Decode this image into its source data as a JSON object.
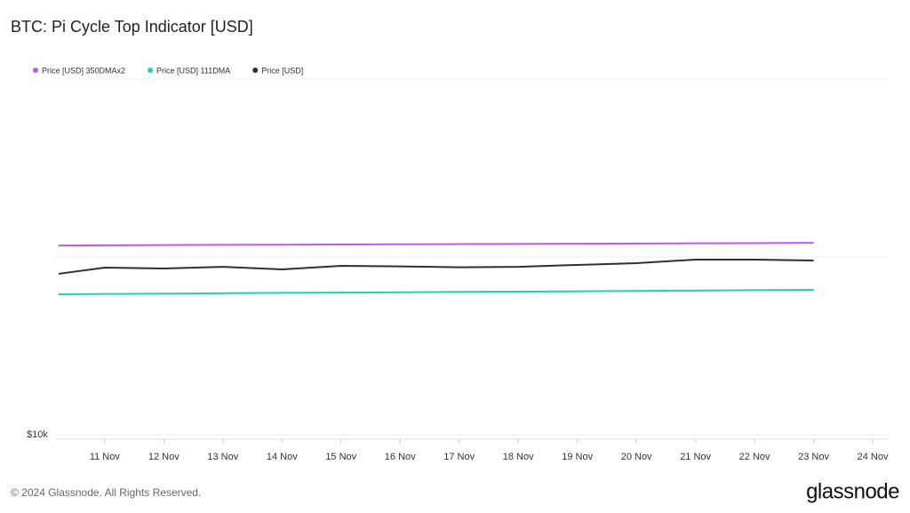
{
  "chart_data": {
    "type": "line",
    "title": "BTC: Pi Cycle Top Indicator [USD]",
    "x": [
      10.22,
      11,
      12,
      13,
      14,
      15,
      16,
      17,
      18,
      19,
      20,
      21,
      22,
      23
    ],
    "xlim": [
      10.16,
      24.27
    ],
    "xticks": [
      {
        "value": 11,
        "label": "11 Nov"
      },
      {
        "value": 12,
        "label": "12 Nov"
      },
      {
        "value": 13,
        "label": "13 Nov"
      },
      {
        "value": 14,
        "label": "14 Nov"
      },
      {
        "value": 15,
        "label": "15 Nov"
      },
      {
        "value": 16,
        "label": "16 Nov"
      },
      {
        "value": 17,
        "label": "17 Nov"
      },
      {
        "value": 18,
        "label": "18 Nov"
      },
      {
        "value": 19,
        "label": "19 Nov"
      },
      {
        "value": 20,
        "label": "20 Nov"
      },
      {
        "value": 21,
        "label": "21 Nov"
      },
      {
        "value": 22,
        "label": "22 Nov"
      },
      {
        "value": 23,
        "label": "23 Nov"
      },
      {
        "value": 24,
        "label": "24 Nov"
      }
    ],
    "ylim": [
      9440,
      1000000
    ],
    "yticks": [
      {
        "value": 10000,
        "label": "$10k"
      }
    ],
    "log_scale": true,
    "grid": true,
    "series": [
      {
        "name": "Price [USD] 350DMAx2",
        "color": "#b45ff0",
        "values": [
          116000,
          116300,
          116600,
          116900,
          117200,
          117500,
          117800,
          118100,
          118400,
          118700,
          119000,
          119300,
          119600,
          120000
        ]
      },
      {
        "name": "Price [USD] 111DMA",
        "color": "#1fd1b4",
        "values": [
          61700,
          61900,
          62200,
          62500,
          62800,
          63000,
          63300,
          63600,
          63800,
          64100,
          64400,
          64700,
          65000,
          65300
        ]
      },
      {
        "name": "Price [USD]",
        "color": "#2f2f33",
        "values": [
          80400,
          87100,
          86100,
          88000,
          85100,
          89100,
          88500,
          87500,
          88000,
          90200,
          92300,
          96600,
          96600,
          95500
        ]
      }
    ]
  },
  "footer": {
    "copyright": "© 2024 Glassnode. All Rights Reserved.",
    "logo": "glassnode"
  }
}
